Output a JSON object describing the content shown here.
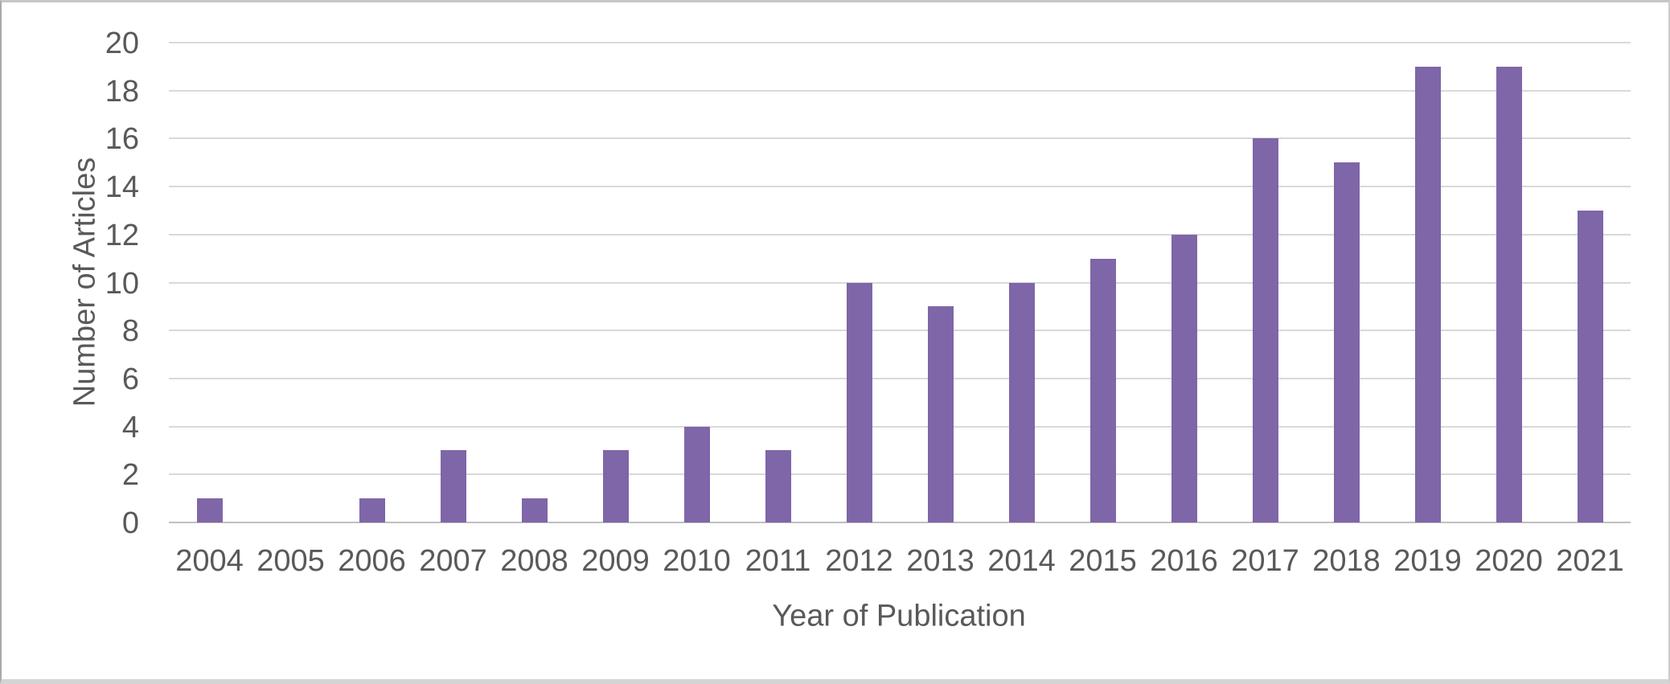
{
  "chart_data": {
    "type": "bar",
    "title": "",
    "categories": [
      "2004",
      "2005",
      "2006",
      "2007",
      "2008",
      "2009",
      "2010",
      "2011",
      "2012",
      "2013",
      "2014",
      "2015",
      "2016",
      "2017",
      "2018",
      "2019",
      "2020",
      "2021"
    ],
    "values": [
      1,
      0,
      1,
      3,
      1,
      3,
      4,
      3,
      10,
      9,
      10,
      11,
      12,
      16,
      15,
      19,
      19,
      13
    ],
    "xlabel": "Year of Publication",
    "ylabel": "Number of Articles",
    "ylim": [
      0,
      20
    ],
    "ytick_step": 2,
    "grid": true,
    "legend_position": "none",
    "bar_color": "#7E66A8",
    "gridline_color": "#D9D9D9",
    "axis_line_color": "#BFBFBF",
    "text_color": "#595959"
  }
}
